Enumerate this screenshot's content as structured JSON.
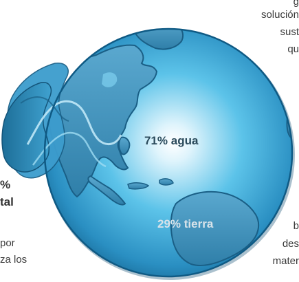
{
  "right_text": {
    "line1": "g",
    "line2": "solución",
    "line3": "sust",
    "line4": "qu",
    "line5": "b",
    "line6": "des",
    "line7": "mater"
  },
  "left_text": {
    "bold1": "%",
    "bold2": "tal",
    "line1": "por",
    "line2": "za los"
  },
  "globe": {
    "water_label": "71% agua",
    "land_label": "29% tierra"
  },
  "colors": {
    "ocean_light": "#dff4fc",
    "ocean_mid": "#5cc3e9",
    "ocean_dark": "#1a6f9a",
    "land": "#3e8fb8",
    "land_shadow": "#16567a",
    "text": "#3a3a3a",
    "water_label": "#2b4b5c",
    "land_label": "#d8e3ea"
  }
}
